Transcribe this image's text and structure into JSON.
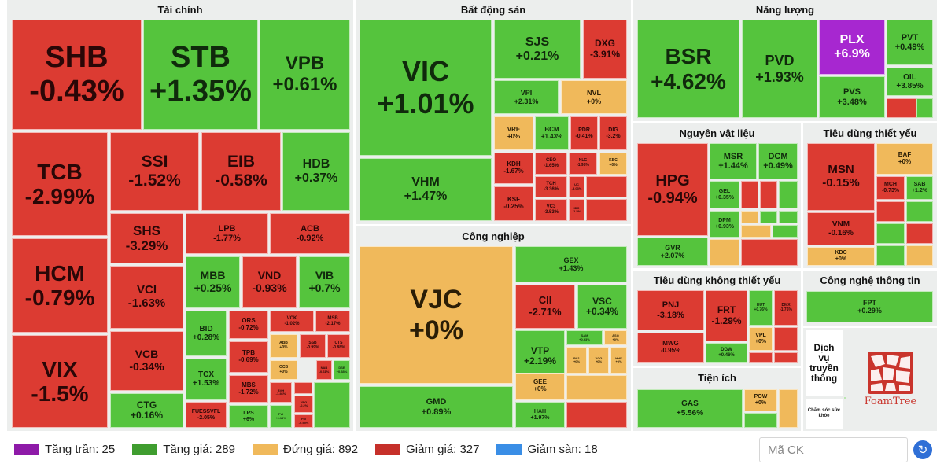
{
  "colors": {
    "up": "#55c43d",
    "down": "#dc3b32",
    "flat": "#f0b95b",
    "ceil": "#a727d0",
    "floor": "#3a8ee6"
  },
  "sectors": {
    "tai_chinh": "Tài chính",
    "bat_dong_san": "Bất động sản",
    "nang_luong": "Năng lượng",
    "cong_nghiep": "Công nghiệp",
    "nguyen_vat_lieu": "Nguyên vật liệu",
    "tieu_dung_thiet_yeu": "Tiêu dùng thiết yếu",
    "tieu_dung_khong_thiet_yeu": "Tiêu dùng không thiết yếu",
    "cong_nghe_thong_tin": "Công nghệ thông tin",
    "tien_ich": "Tiện ích"
  },
  "tiles": {
    "SHB": {
      "sym": "SHB",
      "chg": "-0.43%"
    },
    "STB": {
      "sym": "STB",
      "chg": "+1.35%"
    },
    "VPB": {
      "sym": "VPB",
      "chg": "+0.61%"
    },
    "TCB": {
      "sym": "TCB",
      "chg": "-2.99%"
    },
    "SSI": {
      "sym": "SSI",
      "chg": "-1.52%"
    },
    "EIB": {
      "sym": "EIB",
      "chg": "-0.58%"
    },
    "HDB": {
      "sym": "HDB",
      "chg": "+0.37%"
    },
    "HCM": {
      "sym": "HCM",
      "chg": "-0.79%"
    },
    "SHS": {
      "sym": "SHS",
      "chg": "-3.29%"
    },
    "LPB": {
      "sym": "LPB",
      "chg": "-1.77%"
    },
    "ACB": {
      "sym": "ACB",
      "chg": "-0.92%"
    },
    "VCI": {
      "sym": "VCI",
      "chg": "-1.63%"
    },
    "MBB": {
      "sym": "MBB",
      "chg": "+0.25%"
    },
    "VND": {
      "sym": "VND",
      "chg": "-0.93%"
    },
    "VIB": {
      "sym": "VIB",
      "chg": "+0.7%"
    },
    "VIX": {
      "sym": "VIX",
      "chg": "-1.5%"
    },
    "VCB": {
      "sym": "VCB",
      "chg": "-0.34%"
    },
    "CTG": {
      "sym": "CTG",
      "chg": "+0.16%"
    },
    "BID": {
      "sym": "BID",
      "chg": "+0.28%"
    },
    "TCX": {
      "sym": "TCX",
      "chg": "+1.53%"
    },
    "FUESSVFL": {
      "sym": "FUESSVFL",
      "chg": "-2.05%"
    },
    "ORS": {
      "sym": "ORS",
      "chg": "-0.72%"
    },
    "TPB": {
      "sym": "TPB",
      "chg": "-0.69%"
    },
    "MBS": {
      "sym": "MBS",
      "chg": "-1.72%"
    },
    "LPS": {
      "sym": "LPS",
      "chg": "+6%"
    },
    "VCK": {
      "sym": "VCK",
      "chg": "-1.02%"
    },
    "MSB": {
      "sym": "MSB",
      "chg": "-2.17%"
    },
    "ABB": {
      "sym": "ABB",
      "chg": "+0%"
    },
    "SSB": {
      "sym": "SSB",
      "chg": "-0.99%"
    },
    "CTS": {
      "sym": "CTS",
      "chg": "-0.88%"
    },
    "OCB": {
      "sym": "OCB",
      "chg": "+0%"
    },
    "NAB": {
      "sym": "NAB",
      "chg": "-0.61%"
    },
    "DSE": {
      "sym": "DSE",
      "chg": "+0.38%"
    },
    "BVH": {
      "sym": "BVH",
      "chg": "-1.46%"
    },
    "PVI": {
      "sym": "PVI",
      "chg": "+0.13%"
    },
    "VPG": {
      "sym": "VPG",
      "chg": "-0.2%"
    },
    "FM": {
      "sym": "FM",
      "chg": "-0.55%"
    },
    "VIC": {
      "sym": "VIC",
      "chg": "+1.01%"
    },
    "SJS": {
      "sym": "SJS",
      "chg": "+0.21%"
    },
    "DXG": {
      "sym": "DXG",
      "chg": "-3.91%"
    },
    "VPI": {
      "sym": "VPI",
      "chg": "+2.31%"
    },
    "NVL": {
      "sym": "NVL",
      "chg": "+0%"
    },
    "VRE": {
      "sym": "VRE",
      "chg": "+0%"
    },
    "BCM": {
      "sym": "BCM",
      "chg": "+1.43%"
    },
    "PDR": {
      "sym": "PDR",
      "chg": "-0.41%"
    },
    "DIG": {
      "sym": "DIG",
      "chg": "-3.2%"
    },
    "KDH": {
      "sym": "KDH",
      "chg": "-1.67%"
    },
    "CEO": {
      "sym": "CEO",
      "chg": "-1.65%"
    },
    "NLG": {
      "sym": "NLG",
      "chg": "-1.95%"
    },
    "KBC": {
      "sym": "KBC",
      "chg": "+0%"
    },
    "TCH": {
      "sym": "TCH",
      "chg": "-3.36%"
    },
    "UC": {
      "sym": "UC",
      "chg": "-3.03%"
    },
    "VHM": {
      "sym": "VHM",
      "chg": "+1.47%"
    },
    "KSF": {
      "sym": "KSF",
      "chg": "-0.25%"
    },
    "VC3": {
      "sym": "VC3",
      "chg": "-3.53%"
    },
    "IDC": {
      "sym": "IDC",
      "chg": "-1.5%"
    },
    "BSR": {
      "sym": "BSR",
      "chg": "+4.62%"
    },
    "PVD": {
      "sym": "PVD",
      "chg": "+1.93%"
    },
    "PLX": {
      "sym": "PLX",
      "chg": "+6.9%"
    },
    "PVT": {
      "sym": "PVT",
      "chg": "+0.49%"
    },
    "OIL": {
      "sym": "OIL",
      "chg": "+3.85%"
    },
    "PVS": {
      "sym": "PVS",
      "chg": "+3.48%"
    },
    "VJC": {
      "sym": "VJC",
      "chg": "+0%"
    },
    "GEX": {
      "sym": "GEX",
      "chg": "+1.43%"
    },
    "CII": {
      "sym": "CII",
      "chg": "-2.71%"
    },
    "VSC": {
      "sym": "VSC",
      "chg": "+0.34%"
    },
    "VTP": {
      "sym": "VTP",
      "chg": "+2.19%"
    },
    "SAM": {
      "sym": "SAM",
      "chg": "+0.93%"
    },
    "ASG": {
      "sym": "ASG",
      "chg": "+0%"
    },
    "PC1": {
      "sym": "PC1",
      "chg": "+0%"
    },
    "VCG": {
      "sym": "VCG",
      "chg": "+0%"
    },
    "HHV": {
      "sym": "HHV",
      "chg": "+0%"
    },
    "GEE": {
      "sym": "GEE",
      "chg": "+0%"
    },
    "GMD": {
      "sym": "GMD",
      "chg": "+0.89%"
    },
    "HAH": {
      "sym": "HAH",
      "chg": "+1.97%"
    },
    "HPG": {
      "sym": "HPG",
      "chg": "-0.94%"
    },
    "MSR": {
      "sym": "MSR",
      "chg": "+1.44%"
    },
    "DCM": {
      "sym": "DCM",
      "chg": "+0.49%"
    },
    "GEL": {
      "sym": "GEL",
      "chg": "+0.35%"
    },
    "DPM": {
      "sym": "DPM",
      "chg": "+0.93%"
    },
    "GVR": {
      "sym": "GVR",
      "chg": "+2.07%"
    },
    "MSN": {
      "sym": "MSN",
      "chg": "-0.15%"
    },
    "BAF": {
      "sym": "BAF",
      "chg": "+0%"
    },
    "MCH": {
      "sym": "MCH",
      "chg": "-0.73%"
    },
    "SAB": {
      "sym": "SAB",
      "chg": "+1.2%"
    },
    "VNM": {
      "sym": "VNM",
      "chg": "-0.16%"
    },
    "KDC": {
      "sym": "KDC",
      "chg": "+0%"
    },
    "PNJ": {
      "sym": "PNJ",
      "chg": "-3.18%"
    },
    "FRT": {
      "sym": "FRT",
      "chg": "-1.29%"
    },
    "HUT": {
      "sym": "HUT",
      "chg": "+0.76%"
    },
    "DMX": {
      "sym": "DMX",
      "chg": "-1.76%"
    },
    "VPL": {
      "sym": "VPL",
      "chg": "+0%"
    },
    "MWG": {
      "sym": "MWG",
      "chg": "-0.95%"
    },
    "DGW": {
      "sym": "DGW",
      "chg": "+0.46%"
    },
    "FPT": {
      "sym": "FPT",
      "chg": "+0.29%"
    },
    "GAS": {
      "sym": "GAS",
      "chg": "+5.56%"
    },
    "POW": {
      "sym": "POW",
      "chg": "+0%"
    }
  },
  "media_label": "Dịch vụ truyền thông",
  "care_label": "Chăm sóc sức khỏe",
  "logo_text": "FoamTree",
  "legend": [
    {
      "label": "Tăng trần: 25"
    },
    {
      "label": "Tăng giá: 289"
    },
    {
      "label": "Đứng giá: 892"
    },
    {
      "label": "Giảm giá: 327"
    },
    {
      "label": "Giảm sàn: 18"
    }
  ],
  "search": {
    "placeholder": "Mã CK"
  },
  "refresh_icon": "refresh-icon"
}
